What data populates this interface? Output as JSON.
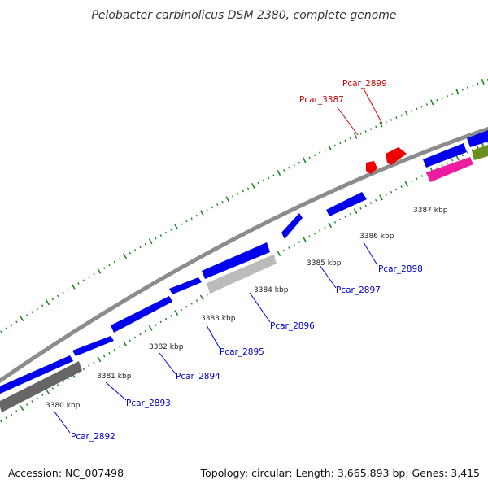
{
  "title": "Pelobacter carbinolicus DSM 2380, complete genome",
  "accession": "Accession: NC_007498",
  "topology": "Topology: circular; Length: 3,665,893 bp; Genes: 3,415",
  "colors": {
    "backbone": "#8c8c8c",
    "tick": "#1a8a1a",
    "forward_gene": "#0000ee",
    "reverse_gene": "#0000ee",
    "gray_gene": "#bbbbbb",
    "dark_gray_gene": "#666666",
    "magenta_gene": "#ee1ca0",
    "olive_gene": "#6b8e23",
    "red_gene": "#ee0000",
    "label_blue": "#0000cc",
    "label_red": "#cc0000"
  },
  "kbp_labels": [
    "3380 kbp",
    "3381 kbp",
    "3382 kbp",
    "3383 kbp",
    "3384 kbp",
    "3385 kbp",
    "3386 kbp",
    "3387 kbp"
  ],
  "gene_labels": [
    {
      "text": "Pcar_2892",
      "color": "blue"
    },
    {
      "text": "Pcar_2893",
      "color": "blue"
    },
    {
      "text": "Pcar_2894",
      "color": "blue"
    },
    {
      "text": "Pcar_2895",
      "color": "blue"
    },
    {
      "text": "Pcar_2896",
      "color": "blue"
    },
    {
      "text": "Pcar_2897",
      "color": "blue"
    },
    {
      "text": "Pcar_2898",
      "color": "blue"
    },
    {
      "text": "Pcar_3387",
      "color": "red"
    },
    {
      "text": "Pcar_2899",
      "color": "red"
    }
  ]
}
